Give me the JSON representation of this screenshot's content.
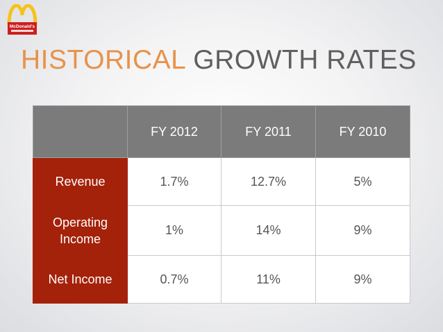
{
  "title": {
    "accent": "HISTORICAL",
    "rest": "GROWTH RATES"
  },
  "logo": {
    "text": "McDonald's",
    "icon": "golden-arches-icon"
  },
  "table": {
    "columns": [
      "",
      "FY 2012",
      "FY 2011",
      "FY 2010"
    ],
    "rows": [
      {
        "label": "Revenue",
        "values": [
          "1.7%",
          "12.7%",
          "5%"
        ]
      },
      {
        "label": "Operating Income",
        "values": [
          "1%",
          "14%",
          "9%"
        ]
      },
      {
        "label": "Net Income",
        "values": [
          "0.7%",
          "11%",
          "9%"
        ]
      }
    ]
  },
  "colors": {
    "accent": "#e8924a",
    "row_header": "#a4210a",
    "column_header": "#7b7b7b",
    "arches": "#f7c21a",
    "logo_red": "#cc1f1f"
  }
}
